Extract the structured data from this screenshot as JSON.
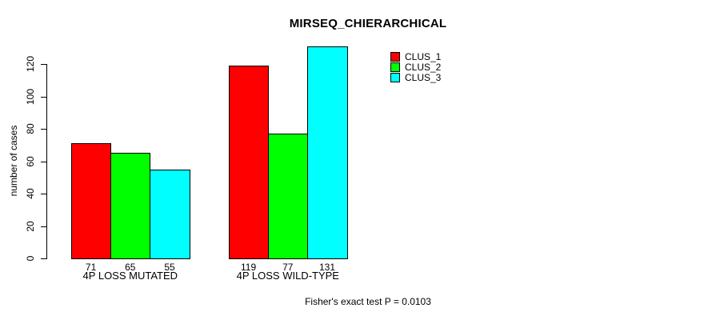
{
  "chart_data": {
    "type": "bar",
    "title": "MIRSEQ_CHIERARCHICAL",
    "xlabel": "",
    "ylabel": "number of cases",
    "categories": [
      "4P LOSS MUTATED",
      "4P LOSS WILD-TYPE"
    ],
    "series": [
      {
        "name": "CLUS_1",
        "color": "#ff0000",
        "values": [
          71,
          119
        ]
      },
      {
        "name": "CLUS_2",
        "color": "#00ff00",
        "values": [
          65,
          77
        ]
      },
      {
        "name": "CLUS_3",
        "color": "#00ffff",
        "values": [
          55,
          131
        ]
      }
    ],
    "ylim": [
      0,
      120
    ],
    "yticks": [
      0,
      20,
      40,
      60,
      80,
      100,
      120
    ],
    "grid": false,
    "bar_value_labels": true,
    "legend_position": "top-right",
    "legend_entries": [
      "CLUS_1",
      "CLUS_2",
      "CLUS_3"
    ],
    "annotation": "Fisher's exact test P = 0.0103",
    "bar_border_color": "#000000",
    "axis_color": "#000000",
    "text_color": "#000000",
    "background_color": "#ffffff"
  }
}
